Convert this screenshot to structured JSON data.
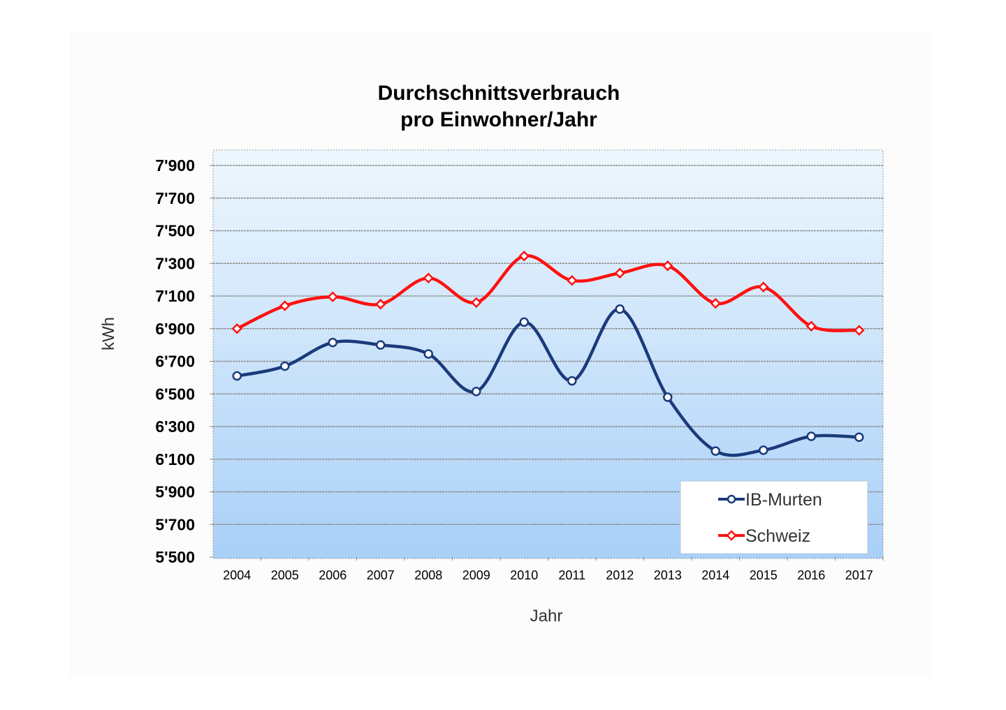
{
  "chart_data": {
    "type": "line",
    "title": [
      "Durchschnittsverbrauch",
      "pro Einwohner/Jahr"
    ],
    "xlabel": "Jahr",
    "ylabel": "kWh",
    "ylim": [
      5500,
      7900
    ],
    "yticks": [
      5500,
      5700,
      5900,
      6100,
      6300,
      6500,
      6700,
      6900,
      7100,
      7300,
      7500,
      7700,
      7900
    ],
    "ytick_labels": [
      "5'500",
      "5'700",
      "5'900",
      "6'100",
      "6'300",
      "6'500",
      "6'700",
      "6'900",
      "7'100",
      "7'300",
      "7'500",
      "7'700",
      "7'900"
    ],
    "categories": [
      "2004",
      "2005",
      "2006",
      "2007",
      "2008",
      "2009",
      "2010",
      "2011",
      "2012",
      "2013",
      "2014",
      "2015",
      "2016",
      "2017"
    ],
    "grid": true,
    "legend_position": "bottom-right",
    "series": [
      {
        "name": "IB-Murten",
        "color": "#1a3a7a",
        "marker": "circle",
        "values": [
          6610,
          6670,
          6815,
          6800,
          6745,
          6515,
          6940,
          6580,
          7020,
          6480,
          6150,
          6155,
          6240,
          6235
        ]
      },
      {
        "name": "Schweiz",
        "color": "#ff1010",
        "marker": "diamond",
        "values": [
          6900,
          7040,
          7095,
          7050,
          7210,
          7060,
          7345,
          7195,
          7240,
          7285,
          7055,
          7155,
          6915,
          6890
        ]
      }
    ]
  }
}
